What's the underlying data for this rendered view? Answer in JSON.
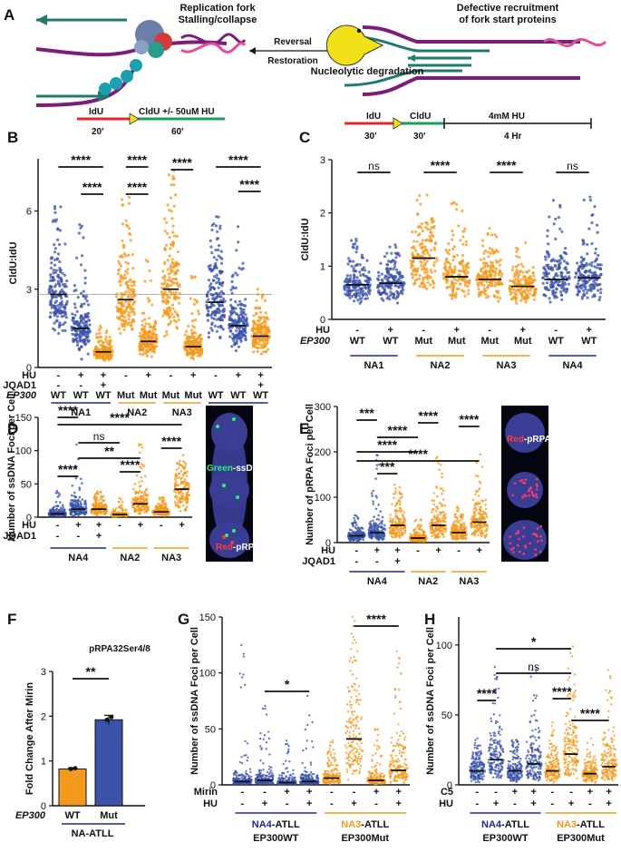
{
  "colors": {
    "blue": "#3a52a8",
    "orange": "#f39a1e",
    "green": "#1a9e5c",
    "purple": "#7a1e78",
    "teal": "#1f7a6e",
    "red": "#e02828",
    "navy": "#1d2a8a",
    "pale_orange": "#f6b66a"
  },
  "panel_a": {
    "label": "A",
    "left_title": "Replication fork\nStalling/collapse",
    "right_title": "Defective recruitment\nof fork start proteins",
    "reversal": "Reversal",
    "restoration": "Restoration",
    "degradation": "Nucleolytic degradation"
  },
  "chart_data": [
    {
      "panel": "B",
      "type": "scatter",
      "ylabel": "CldU:IdU",
      "ylim": [
        0,
        8
      ],
      "yticks": [
        0,
        3,
        6
      ],
      "reference_line": 2.8,
      "schema": {
        "pulse1": "IdU",
        "pulse2": "CldU +/- 50uM HU",
        "time1": "20'",
        "time2": "60'"
      },
      "row_labels": [
        "HU",
        "JQAD1",
        "EP300"
      ],
      "columns": [
        {
          "hu": "-",
          "jqad1": "-",
          "ep300": "WT",
          "color": "blue",
          "median": 2.8,
          "max": 7.0
        },
        {
          "hu": "+",
          "jqad1": "-",
          "ep300": "WT",
          "color": "blue",
          "median": 1.5,
          "max": 5.5
        },
        {
          "hu": "+",
          "jqad1": "+",
          "ep300": "WT",
          "color": "orange",
          "median": 0.6,
          "max": 2.3
        },
        {
          "hu": "-",
          "jqad1": "",
          "ep300": "Mut",
          "color": "orange",
          "median": 2.6,
          "max": 6.8
        },
        {
          "hu": "+",
          "jqad1": "",
          "ep300": "Mut",
          "color": "orange",
          "median": 1.0,
          "max": 4.2
        },
        {
          "hu": "-",
          "jqad1": "",
          "ep300": "Mut",
          "color": "orange",
          "median": 3.0,
          "max": 7.6
        },
        {
          "hu": "+",
          "jqad1": "",
          "ep300": "Mut",
          "color": "orange",
          "median": 0.8,
          "max": 3.5
        },
        {
          "hu": "-",
          "jqad1": "",
          "ep300": "WT",
          "color": "blue",
          "median": 2.5,
          "max": 6.0
        },
        {
          "hu": "+",
          "jqad1": "",
          "ep300": "WT",
          "color": "blue",
          "median": 1.6,
          "max": 5.5
        },
        {
          "hu": "+",
          "jqad1": "+",
          "ep300": "WT",
          "color": "orange",
          "median": 1.2,
          "max": 3.0
        }
      ],
      "groups": [
        {
          "name": "NA1",
          "color": "navy"
        },
        {
          "name": "NA2",
          "color": "orange"
        },
        {
          "name": "NA3",
          "color": "orange"
        },
        {
          "name": "NA4",
          "color": "navy"
        }
      ],
      "comparisons": [
        "****",
        "****",
        "****",
        "****",
        "****",
        "****",
        "****"
      ]
    },
    {
      "panel": "C",
      "type": "scatter",
      "ylabel": "CldU:IdU",
      "ylim": [
        0,
        3
      ],
      "yticks": [
        0,
        1,
        2,
        3
      ],
      "schema": {
        "pulse1": "IdU",
        "pulse2": "CldU",
        "time1": "30'",
        "time2": "30'",
        "treat": "4mM HU",
        "treat_time": "4 Hr"
      },
      "row_labels": [
        "HU",
        "EP300"
      ],
      "columns": [
        {
          "hu": "-",
          "ep300": "WT",
          "color": "blue",
          "median": 0.65,
          "max": 1.6
        },
        {
          "hu": "+",
          "ep300": "WT",
          "color": "blue",
          "median": 0.68,
          "max": 1.5
        },
        {
          "hu": "-",
          "ep300": "Mut",
          "color": "orange",
          "median": 1.15,
          "max": 2.9
        },
        {
          "hu": "+",
          "ep300": "Mut",
          "color": "orange",
          "median": 0.8,
          "max": 2.3
        },
        {
          "hu": "-",
          "ep300": "Mut",
          "color": "orange",
          "median": 0.75,
          "max": 1.8
        },
        {
          "hu": "+",
          "ep300": "Mut",
          "color": "orange",
          "median": 0.62,
          "max": 1.5
        },
        {
          "hu": "-",
          "ep300": "WT",
          "color": "blue",
          "median": 0.75,
          "max": 2.3
        },
        {
          "hu": "+",
          "ep300": "WT",
          "color": "blue",
          "median": 0.78,
          "max": 2.4
        }
      ],
      "groups": [
        {
          "name": "NA1",
          "color": "navy"
        },
        {
          "name": "NA2",
          "color": "orange"
        },
        {
          "name": "NA3",
          "color": "orange"
        },
        {
          "name": "NA4",
          "color": "navy"
        }
      ],
      "comparisons": [
        "ns",
        "****",
        "****",
        "ns"
      ]
    },
    {
      "panel": "D",
      "type": "scatter",
      "ylabel": "Number of ssDNA Foci per Cell",
      "ylim": [
        0,
        150
      ],
      "yticks": [
        0,
        50,
        100,
        150
      ],
      "row_labels": [
        "HU",
        "JQAD1"
      ],
      "columns": [
        {
          "hu": "-",
          "jqad1": "-",
          "color": "blue",
          "median": 5,
          "max": 40
        },
        {
          "hu": "+",
          "jqad1": "-",
          "color": "blue",
          "median": 12,
          "max": 110
        },
        {
          "hu": "+",
          "jqad1": "+",
          "color": "orange",
          "median": 12,
          "max": 40
        },
        {
          "hu": "-",
          "jqad1": "",
          "color": "orange",
          "median": 4,
          "max": 30
        },
        {
          "hu": "+",
          "jqad1": "",
          "color": "orange",
          "median": 20,
          "max": 110
        },
        {
          "hu": "-",
          "jqad1": "",
          "color": "orange",
          "median": 8,
          "max": 30
        },
        {
          "hu": "+",
          "jqad1": "",
          "color": "orange",
          "median": 42,
          "max": 85
        }
      ],
      "groups": [
        {
          "name": "NA4",
          "color": "navy"
        },
        {
          "name": "NA2",
          "color": "orange"
        },
        {
          "name": "NA3",
          "color": "orange"
        }
      ],
      "comparisons": [
        "****",
        "****",
        "ns",
        "**",
        "****",
        "****",
        "****"
      ],
      "micrograph_labels": {
        "green": "Green",
        "green_rest": "-ssDNAgap",
        "red": "Red",
        "red_rest": "-pRPA"
      }
    },
    {
      "panel": "E",
      "type": "scatter",
      "ylabel": "Number of pRPA Foci per Cell",
      "ylim": [
        0,
        300
      ],
      "yticks": [
        0,
        100,
        200,
        300
      ],
      "row_labels": [
        "HU",
        "JQAD1"
      ],
      "columns": [
        {
          "hu": "-",
          "jqad1": "-",
          "color": "blue",
          "median": 15,
          "max": 60
        },
        {
          "hu": "+",
          "jqad1": "-",
          "color": "blue",
          "median": 22,
          "max": 220
        },
        {
          "hu": "+",
          "jqad1": "+",
          "color": "orange",
          "median": 38,
          "max": 140
        },
        {
          "hu": "-",
          "jqad1": "",
          "color": "orange",
          "median": 10,
          "max": 70
        },
        {
          "hu": "+",
          "jqad1": "",
          "color": "orange",
          "median": 38,
          "max": 200
        },
        {
          "hu": "-",
          "jqad1": "",
          "color": "orange",
          "median": 22,
          "max": 80
        },
        {
          "hu": "+",
          "jqad1": "",
          "color": "orange",
          "median": 45,
          "max": 205
        }
      ],
      "groups": [
        {
          "name": "NA4",
          "color": "navy"
        },
        {
          "name": "NA2",
          "color": "orange"
        },
        {
          "name": "NA3",
          "color": "orange"
        }
      ],
      "comparisons": [
        "***",
        "****",
        "****",
        "****",
        "****",
        "****",
        "***"
      ],
      "micrograph_labels": {
        "red": "Red",
        "red_rest": "-pRPA"
      }
    },
    {
      "panel": "F",
      "type": "bar",
      "title": "pRPA32Ser4/8",
      "ylabel": "Fold Change After Mirin",
      "ylim": [
        0,
        3
      ],
      "yticks": [
        0,
        1,
        2,
        3
      ],
      "row_label": "EP300",
      "categories": [
        "WT",
        "Mut"
      ],
      "values": [
        0.82,
        1.92
      ],
      "errors": [
        0.03,
        0.1
      ],
      "bar_colors": [
        "orange",
        "blue"
      ],
      "group": "NA-ATLL",
      "comparisons": [
        "**"
      ]
    },
    {
      "panel": "G",
      "type": "scatter",
      "ylabel": "Number of ssDNA Foci per Cell",
      "ylim": [
        0,
        150
      ],
      "yticks": [
        0,
        50,
        100,
        150
      ],
      "row_labels": [
        "Mirin",
        "HU"
      ],
      "columns": [
        {
          "mirin": "-",
          "hu": "-",
          "color": "blue",
          "median": 3,
          "max": 130
        },
        {
          "mirin": "-",
          "hu": "+",
          "color": "blue",
          "median": 4,
          "max": 75
        },
        {
          "mirin": "+",
          "hu": "-",
          "color": "blue",
          "median": 2,
          "max": 40
        },
        {
          "mirin": "+",
          "hu": "+",
          "color": "blue",
          "median": 3,
          "max": 80
        },
        {
          "mirin": "-",
          "hu": "-",
          "color": "orange",
          "median": 6,
          "max": 40
        },
        {
          "mirin": "-",
          "hu": "+",
          "color": "orange",
          "median": 41,
          "max": 135
        },
        {
          "mirin": "+",
          "hu": "-",
          "color": "orange",
          "median": 4,
          "max": 50
        },
        {
          "mirin": "+",
          "hu": "+",
          "color": "orange",
          "median": 13,
          "max": 120
        }
      ],
      "groups": [
        {
          "name": "NA4",
          "suffix": "-ATLL",
          "sub": "EP300WT",
          "color": "navy"
        },
        {
          "name": "NA3",
          "suffix": "-ATLL",
          "sub": "EP300Mut",
          "color": "orange"
        }
      ],
      "comparisons": [
        "*",
        "****"
      ]
    },
    {
      "panel": "H",
      "type": "scatter",
      "ylabel": "Number of ssDNA Foci per Cell",
      "ylim": [
        0,
        120
      ],
      "yticks": [
        0,
        50,
        100
      ],
      "row_labels": [
        "C5",
        "HU"
      ],
      "columns": [
        {
          "c5": "-",
          "hu": "-",
          "color": "blue",
          "median": 10,
          "max": 30
        },
        {
          "c5": "-",
          "hu": "+",
          "color": "blue",
          "median": 18,
          "max": 85
        },
        {
          "c5": "+",
          "hu": "-",
          "color": "blue",
          "median": 10,
          "max": 35
        },
        {
          "c5": "+",
          "hu": "+",
          "color": "blue",
          "median": 15,
          "max": 115
        },
        {
          "c5": "-",
          "hu": "-",
          "color": "orange",
          "median": 10,
          "max": 40
        },
        {
          "c5": "-",
          "hu": "+",
          "color": "orange",
          "median": 22,
          "max": 110
        },
        {
          "c5": "+",
          "hu": "-",
          "color": "orange",
          "median": 8,
          "max": 35
        },
        {
          "c5": "+",
          "hu": "+",
          "color": "orange",
          "median": 13,
          "max": 85
        }
      ],
      "groups": [
        {
          "name": "NA4",
          "suffix": "-ATLL",
          "sub": "EP300WT",
          "color": "navy"
        },
        {
          "name": "NA3",
          "suffix": "-ATLL",
          "sub": "EP300Mut",
          "color": "orange"
        }
      ],
      "comparisons": [
        "****",
        "ns",
        "*",
        "****",
        "****"
      ]
    }
  ]
}
